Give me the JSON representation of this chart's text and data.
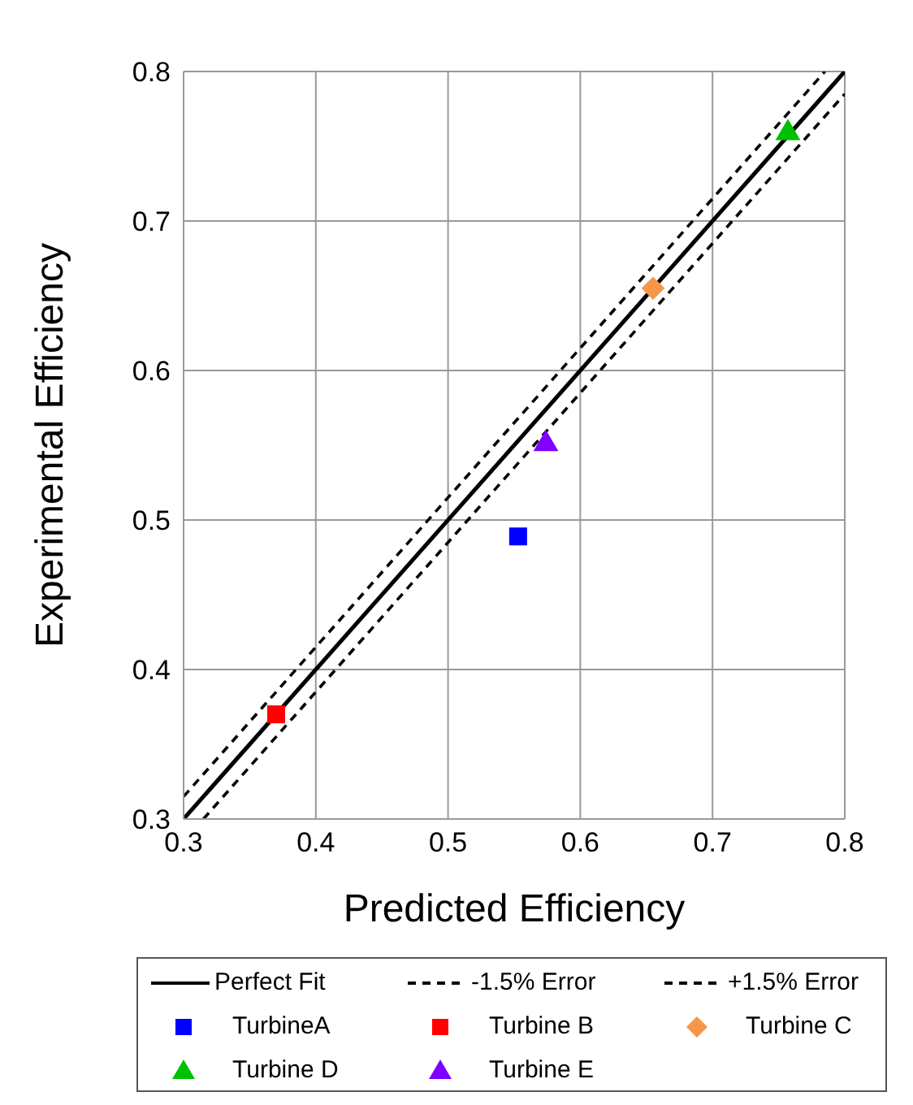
{
  "chart_data": {
    "type": "scatter",
    "xlabel": "Predicted Efficiency",
    "ylabel": "Experimental Efficiency",
    "xlim": [
      0.3,
      0.8
    ],
    "ylim": [
      0.3,
      0.8
    ],
    "xticks": [
      0.3,
      0.4,
      0.5,
      0.6,
      0.7,
      0.8
    ],
    "yticks": [
      0.3,
      0.4,
      0.5,
      0.6,
      0.7,
      0.8
    ],
    "grid": true,
    "legend": "bottom",
    "series": [
      {
        "name": "Perfect Fit",
        "type": "line",
        "color": "#000000",
        "line_style": "solid",
        "marker": "none",
        "x": [
          0.3,
          0.8
        ],
        "values": [
          0.3,
          0.8
        ]
      },
      {
        "name": "-1.5% Error",
        "type": "line",
        "color": "#000000",
        "line_style": "dashed",
        "marker": "none",
        "x": [
          0.315,
          0.8
        ],
        "values": [
          0.3,
          0.785
        ]
      },
      {
        "name": "+1.5% Error",
        "type": "line",
        "color": "#000000",
        "line_style": "dashed",
        "marker": "none",
        "x": [
          0.3,
          0.785
        ],
        "values": [
          0.315,
          0.8
        ]
      },
      {
        "name": "TurbineA",
        "color": "#0000ff",
        "marker": "square",
        "x": [
          0.553
        ],
        "values": [
          0.489
        ]
      },
      {
        "name": "Turbine B",
        "color": "#ff0000",
        "marker": "square",
        "x": [
          0.37
        ],
        "values": [
          0.37
        ]
      },
      {
        "name": "Turbine C",
        "color": "#f79646",
        "marker": "diamond",
        "x": [
          0.655
        ],
        "values": [
          0.655
        ]
      },
      {
        "name": "Turbine D",
        "color": "#00c000",
        "marker": "triangle",
        "x": [
          0.757
        ],
        "values": [
          0.76
        ]
      },
      {
        "name": "Turbine E",
        "color": "#7f00ff",
        "marker": "triangle",
        "x": [
          0.574
        ],
        "values": [
          0.552
        ]
      }
    ]
  }
}
